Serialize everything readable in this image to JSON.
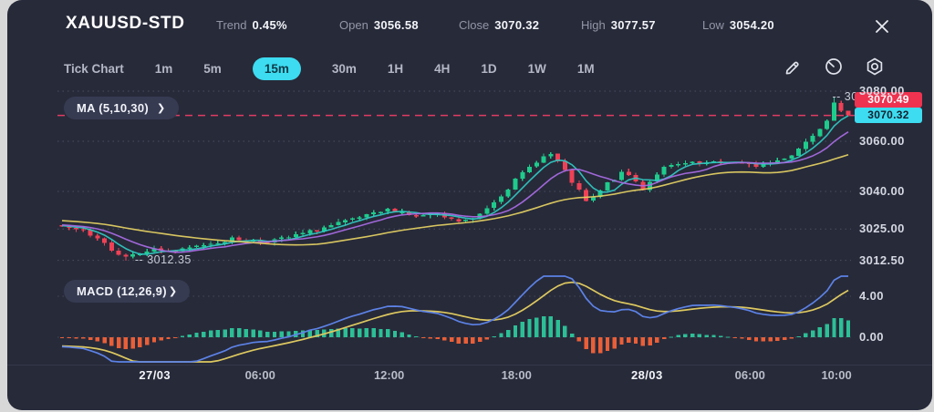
{
  "header": {
    "symbol": "XAUUSD-STD",
    "stats": [
      {
        "label": "Trend",
        "value": "0.45%"
      },
      {
        "label": "Open",
        "value": "3056.58"
      },
      {
        "label": "Close",
        "value": "3070.32"
      },
      {
        "label": "High",
        "value": "3077.57"
      },
      {
        "label": "Low",
        "value": "3054.20"
      }
    ]
  },
  "toolbar": {
    "timeframes": [
      "Tick Chart",
      "1m",
      "5m",
      "15m",
      "30m",
      "1H",
      "4H",
      "1D",
      "1W",
      "1M"
    ],
    "active_timeframe": "15m",
    "tool_icons": [
      "draw-icon",
      "gauge-icon",
      "settings-icon"
    ]
  },
  "indicators": {
    "ma_label": "MA (5,10,30)",
    "macd_label": "MACD (12,26,9)",
    "chevron": "❯"
  },
  "badges": {
    "ask": {
      "text": "3070.49"
    },
    "bid": {
      "text": "3070.32"
    }
  },
  "markers": {
    "low": "-- 3012.35",
    "high": "-- 30"
  },
  "colors": {
    "accent_cyan": "#3ddcf0",
    "accent_red": "#ee3350",
    "candle_up": "#1ecb8c",
    "candle_down": "#ef4156",
    "ma": [
      "#2fc6c0",
      "#a56ae0",
      "#e0cd62"
    ],
    "macd_line": "#5c82e6",
    "macd_signal": "#ddc85f",
    "hist_pos": "#2cbf96",
    "hist_neg": "#ea5f38",
    "close_line": "#e23b63",
    "grid": "#6a6e80",
    "active_tab_text": "#0e3a47",
    "badge_bid_text": "#14212e"
  },
  "chart_data": {
    "type": "candlestick",
    "symbol": "XAUUSD-STD",
    "interval": "15m",
    "ohlc_summary": {
      "trend_pct": 0.45,
      "open": 3056.58,
      "close": 3070.32,
      "high": 3077.57,
      "low": 3054.2
    },
    "y_axis": {
      "ticks": [
        3080,
        3060,
        3040,
        3025,
        3012.5
      ],
      "labels": [
        "3080.00",
        "3060.00",
        "3040.00",
        "3025.00",
        "3012.50"
      ]
    },
    "macd_axis": {
      "ticks": [
        4,
        0
      ],
      "labels": [
        "4.00",
        "0.00"
      ]
    },
    "x_axis": [
      {
        "label": "27/03",
        "pos": 0.118,
        "bold": true
      },
      {
        "label": "06:00",
        "pos": 0.252,
        "bold": false
      },
      {
        "label": "12:00",
        "pos": 0.416,
        "bold": false
      },
      {
        "label": "18:00",
        "pos": 0.578,
        "bold": false
      },
      {
        "label": "28/03",
        "pos": 0.744,
        "bold": true
      },
      {
        "label": "06:00",
        "pos": 0.875,
        "bold": false
      },
      {
        "label": "10:00",
        "pos": 0.985,
        "bold": false
      }
    ],
    "key_points": {
      "session_low": 3012.35,
      "session_high": 3077.57,
      "last_close": 3070.32,
      "ask": 3070.49
    },
    "ma_periods": [
      5,
      10,
      30
    ],
    "macd_params": [
      12,
      26,
      9
    ],
    "candle_count": 112,
    "seed": 7,
    "price_path": [
      [
        0.0,
        3026
      ],
      [
        0.026,
        3024
      ],
      [
        0.049,
        3020
      ],
      [
        0.078,
        3014
      ],
      [
        0.113,
        3017
      ],
      [
        0.147,
        3016
      ],
      [
        0.182,
        3019
      ],
      [
        0.217,
        3021
      ],
      [
        0.252,
        3020
      ],
      [
        0.281,
        3021
      ],
      [
        0.316,
        3024
      ],
      [
        0.35,
        3027
      ],
      [
        0.385,
        3030
      ],
      [
        0.42,
        3033
      ],
      [
        0.449,
        3030
      ],
      [
        0.472,
        3031
      ],
      [
        0.501,
        3028
      ],
      [
        0.524,
        3029
      ],
      [
        0.553,
        3037
      ],
      [
        0.582,
        3046
      ],
      [
        0.606,
        3053
      ],
      [
        0.623,
        3055
      ],
      [
        0.646,
        3045
      ],
      [
        0.669,
        3035
      ],
      [
        0.693,
        3043
      ],
      [
        0.716,
        3048
      ],
      [
        0.739,
        3041
      ],
      [
        0.762,
        3049
      ],
      [
        0.791,
        3051
      ],
      [
        0.82,
        3051
      ],
      [
        0.849,
        3052
      ],
      [
        0.878,
        3050
      ],
      [
        0.907,
        3052
      ],
      [
        0.93,
        3055
      ],
      [
        0.953,
        3062
      ],
      [
        0.977,
        3070
      ],
      [
        0.991,
        3076
      ],
      [
        1.0,
        3070.3
      ]
    ]
  }
}
